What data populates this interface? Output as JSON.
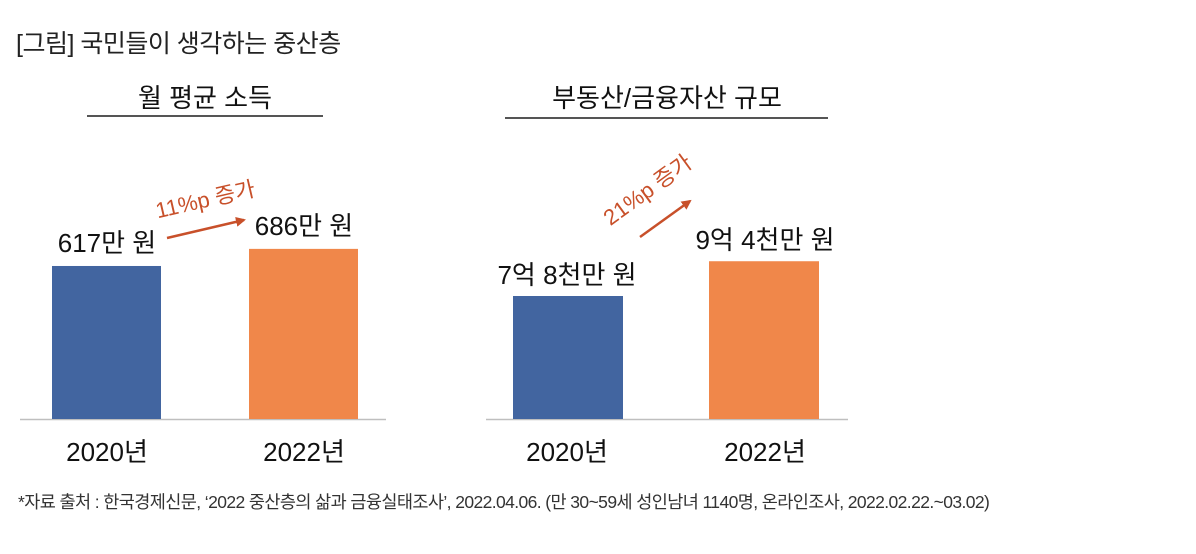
{
  "figure_title": "[그림] 국민들이 생각하는 중산층",
  "colors": {
    "series_2020": "#4265A0",
    "series_2022": "#F0874A",
    "annotation": "#C8502A",
    "axis": "#BFBFBF",
    "heading_rule": "#555555"
  },
  "chart_data": [
    {
      "type": "bar",
      "title": "월 평균 소득",
      "categories": [
        "2020년",
        "2022년"
      ],
      "values": [
        617,
        686
      ],
      "unit": "만 원",
      "value_labels": [
        "617만 원",
        "686만 원"
      ],
      "annotation": {
        "text": "11%p 증가",
        "from": "2020년",
        "to": "2022년",
        "arrow": true
      },
      "xlabel": "",
      "ylabel": "",
      "ylim": [
        0,
        1000
      ],
      "grid": false,
      "legend": "none"
    },
    {
      "type": "bar",
      "title": "부동산/금융자산 규모",
      "categories": [
        "2020년",
        "2022년"
      ],
      "values": [
        7.8,
        9.4
      ],
      "unit": "억 원",
      "value_labels": [
        "7억 8천만 원",
        "9억 4천만 원"
      ],
      "annotation": {
        "text": "21%p 증가",
        "from": "2020년",
        "to": "2022년",
        "arrow": true
      },
      "xlabel": "",
      "ylabel": "",
      "ylim": [
        2.14,
        13
      ],
      "grid": false,
      "legend": "none"
    }
  ],
  "footnote": "*자료 출처 : 한국경제신문, ‘2022 중산층의 삶과 금융실태조사’, 2022.04.06. (만 30~59세 성인남녀 1140명, 온라인조사, 2022.02.22.~03.02)"
}
